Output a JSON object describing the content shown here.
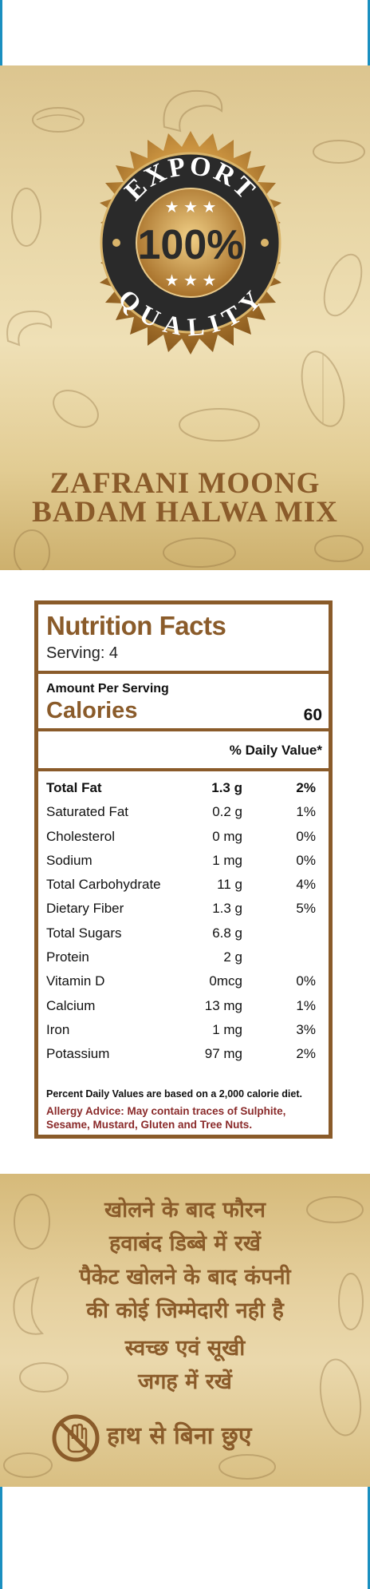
{
  "badge": {
    "top_text": "EXPORT",
    "center_text": "100%",
    "bottom_text": "QUALITY"
  },
  "product": {
    "title_line1": "ZAFRANI MOONG",
    "title_line2": "BADAM HALWA MIX"
  },
  "nutrition": {
    "title": "Nutrition Facts",
    "serving": "Serving: 4",
    "amount_per_serving": "Amount Per Serving",
    "calories_label": "Calories",
    "calories_value": "60",
    "daily_value_header": "% Daily Value*",
    "rows": [
      {
        "name": "Total Fat",
        "amount": "1.3 g",
        "dv": "2%",
        "bold": true
      },
      {
        "name": "Saturated Fat",
        "amount": "0.2 g",
        "dv": "1%"
      },
      {
        "name": "Cholesterol",
        "amount": "0 mg",
        "dv": "0%"
      },
      {
        "name": "Sodium",
        "amount": "1 mg",
        "dv": "0%"
      },
      {
        "name": "Total Carbohydrate",
        "amount": "11 g",
        "dv": "4%"
      },
      {
        "name": "Dietary Fiber",
        "amount": "1.3 g",
        "dv": "5%"
      },
      {
        "name": "Total Sugars",
        "amount": "6.8 g",
        "dv": ""
      },
      {
        "name": "Protein",
        "amount": "2 g",
        "dv": ""
      },
      {
        "name": "Vitamin D",
        "amount": "0mcg",
        "dv": "0%"
      },
      {
        "name": "Calcium",
        "amount": "13 mg",
        "dv": "1%"
      },
      {
        "name": "Iron",
        "amount": "1 mg",
        "dv": "3%"
      },
      {
        "name": "Potassium",
        "amount": "97 mg",
        "dv": "2%"
      }
    ],
    "footnote": "Percent Daily Values are based on a 2,000 calorie diet.",
    "allergy": "Allergy Advice: May contain traces of Sulphite, Sesame, Mustard, Gluten and Tree Nuts."
  },
  "instructions": {
    "line1": "खोलने के बाद फौरन",
    "line2": "हवाबंद डिब्बे में रखें",
    "line3": "पैकेट खोलने के बाद कंपनी",
    "line4": "की कोई जिम्मेदारी नही है",
    "line5": "स्वच्छ एवं सूखी",
    "line6": "जगह में रखें",
    "no_touch": "हाथ से बिना छुए"
  },
  "colors": {
    "brand_brown": "#8a5b2a",
    "gold_light": "#efe0b6",
    "gold_dark": "#cdb06d",
    "allergy_red": "#8a2a2a"
  }
}
